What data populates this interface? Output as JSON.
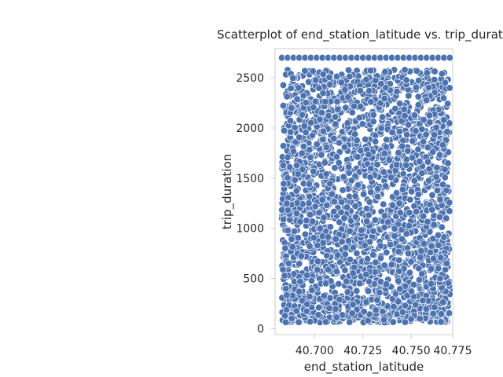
{
  "chart_data": {
    "type": "scatter",
    "title": "Scatterplot of end_station_latitude vs. trip_duratio",
    "xlabel": "end_station_latitude",
    "ylabel": "trip_duration",
    "xlim": [
      40.6795,
      40.7715
    ],
    "ylim": [
      -60,
      2790
    ],
    "x_ticks": [
      40.7,
      40.725,
      40.75,
      40.775
    ],
    "x_tick_labels": [
      "40.700",
      "40.725",
      "40.750",
      "40.775"
    ],
    "y_ticks": [
      0,
      500,
      1000,
      1500,
      2000,
      2500
    ],
    "y_tick_labels": [
      "0",
      "500",
      "1000",
      "1500",
      "2000",
      "2500"
    ],
    "point_color": "#4c72b0",
    "point_edge_color": "#ffffff",
    "axes_edge_color": "#cccccc",
    "grid": false,
    "x_data_range": [
      40.683,
      40.77
    ],
    "y_data_range": [
      60,
      2700
    ],
    "point_count": 2600,
    "y_cap_value": 2700,
    "y_cap_x_values": [
      40.683,
      40.686,
      40.689,
      40.692,
      40.695,
      40.698,
      40.701,
      40.704,
      40.707,
      40.71,
      40.713,
      40.716,
      40.719,
      40.722,
      40.725,
      40.728,
      40.731,
      40.734,
      40.737,
      40.74,
      40.743,
      40.746,
      40.749,
      40.752,
      40.755,
      40.758,
      40.761,
      40.764,
      40.767,
      40.77
    ]
  }
}
